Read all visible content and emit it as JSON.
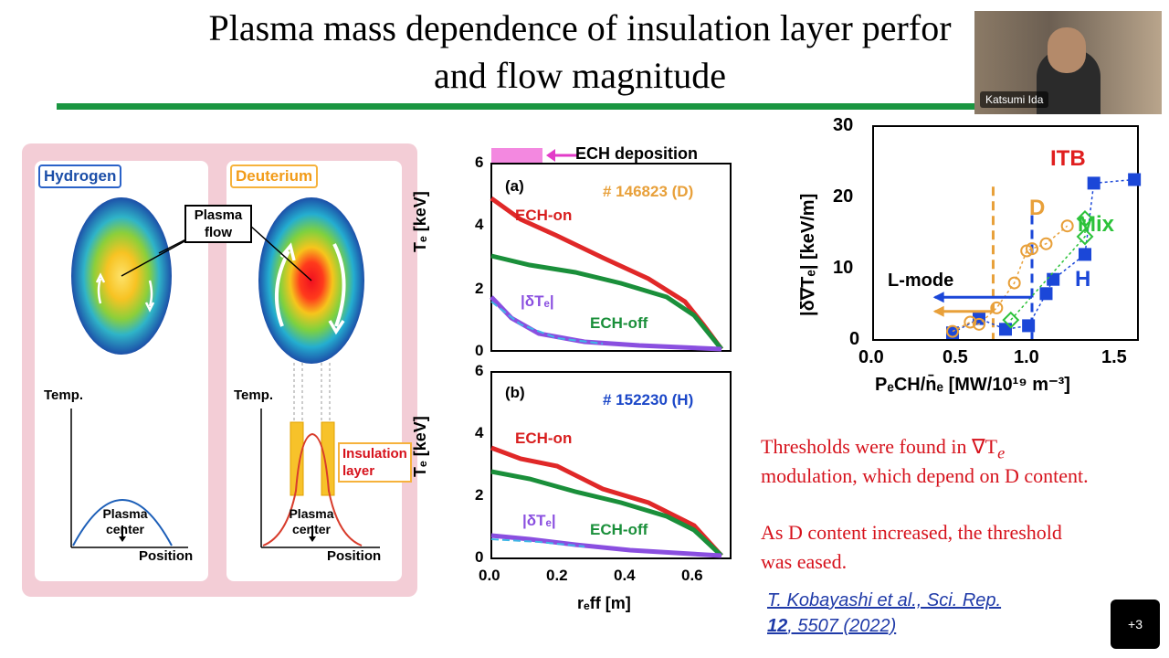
{
  "slide": {
    "title_line1": "Plasma mass dependence of insulation layer perfor",
    "title_line2": "and flow magnitude"
  },
  "left_figure": {
    "hydrogen": "Hydrogen",
    "deuterium": "Deuterium",
    "plasma_flow": "Plasma\nflow",
    "temp_left": "Temp.",
    "temp_right": "Temp.",
    "plasma_center_left": "Plasma\ncenter",
    "plasma_center_right": "Plasma\ncenter",
    "position_left": "Position",
    "position_right": "Position",
    "insulation_layer": "Insulation\nlayer"
  },
  "middle_figure": {
    "ech_deposition": "ECH deposition",
    "panel_a": {
      "tag": "(a)",
      "shot": "# 146823 (D)",
      "on": "ECH-on",
      "off": "ECH-off",
      "delta": "|δTₑ|"
    },
    "panel_b": {
      "tag": "(b)",
      "shot": "# 152230 (H)",
      "on": "ECH-on",
      "off": "ECH-off",
      "delta": "|δTₑ|"
    },
    "ylabel": "Tₑ [keV]",
    "xlabel": "rₑff [m]",
    "yticks": [
      "0",
      "2",
      "4",
      "6"
    ],
    "xticks": [
      "0.0",
      "0.2",
      "0.4",
      "0.6"
    ]
  },
  "right_chart": {
    "ylabel": "|δ∇Tₑ| [keV/m]",
    "xlabel": "PₑCH/n̄ₑ [MW/10¹⁹ m⁻³]",
    "yticks": [
      "0",
      "10",
      "20",
      "30"
    ],
    "xticks": [
      "0.0",
      "0.5",
      "1.0",
      "1.5"
    ],
    "itb": "ITB",
    "d": "D",
    "mix": "Mix",
    "h": "H",
    "lmode": "L-mode"
  },
  "chart_data": {
    "type": "scatter",
    "xlabel": "P_ECH/n_e [MW/10^19 m^-3]",
    "ylabel": "|δ∇T_e| [keV/m]",
    "xlim": [
      0,
      1.5
    ],
    "ylim": [
      0,
      30
    ],
    "series": [
      {
        "name": "H",
        "x": [
          0.45,
          0.6,
          0.75,
          0.88,
          0.98,
          1.02,
          1.2,
          1.25,
          1.48
        ],
        "y": [
          1,
          3,
          1.5,
          2,
          6.5,
          8.5,
          12,
          22,
          22.5
        ]
      },
      {
        "name": "D",
        "x": [
          0.45,
          0.55,
          0.6,
          0.7,
          0.8,
          0.87,
          0.9,
          0.98,
          1.1
        ],
        "y": [
          1.2,
          2.5,
          2.2,
          4.5,
          8,
          12.5,
          12.8,
          13.5,
          16
        ]
      },
      {
        "name": "Mix",
        "x": [
          0.78,
          1.2,
          1.2
        ],
        "y": [
          2.8,
          14.5,
          17
        ]
      }
    ]
  },
  "text": {
    "threshold_line1": "Thresholds were found in ∇T",
    "threshold_sub": "e",
    "threshold_line2": "modulation, which depend on D content.",
    "eased_line1": "As D content increased, the threshold",
    "eased_line2": "was eased.",
    "cite_line1": "T. Kobayashi et al., Sci. Rep.",
    "cite_bold": "12",
    "cite_rest": ", 5507 (2022)"
  },
  "video": {
    "speaker": "Katsumi Ida"
  },
  "overflow_button": {
    "label": "+3"
  }
}
